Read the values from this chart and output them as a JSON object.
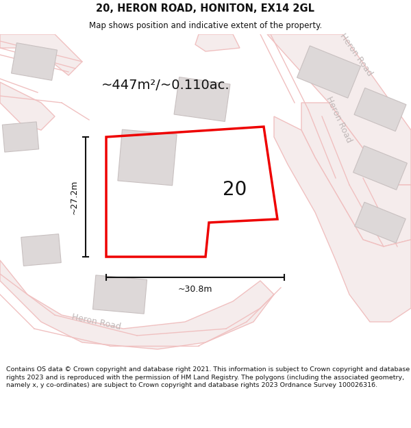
{
  "title_line1": "20, HERON ROAD, HONITON, EX14 2GL",
  "title_line2": "Map shows position and indicative extent of the property.",
  "area_label": "~447m²/~0.110ac.",
  "number_label": "20",
  "dim_height": "~27.2m",
  "dim_width": "~30.8m",
  "footer_text": "Contains OS data © Crown copyright and database right 2021. This information is subject to Crown copyright and database rights 2023 and is reproduced with the permission of HM Land Registry. The polygons (including the associated geometry, namely x, y co-ordinates) are subject to Crown copyright and database rights 2023 Ordnance Survey 100026316.",
  "map_bg": "#f8f4f4",
  "road_color": "#f0c0c0",
  "road_fill": "#f5ecec",
  "building_fill": "#ddd8d8",
  "building_edge": "#c8c0c0",
  "plot_color": "#ee0000",
  "road_label_color": "#c0b8b8",
  "title_color": "#111111",
  "footer_color": "#111111",
  "heron_road_label_color": "#bbbbbb",
  "dim_color": "#111111"
}
